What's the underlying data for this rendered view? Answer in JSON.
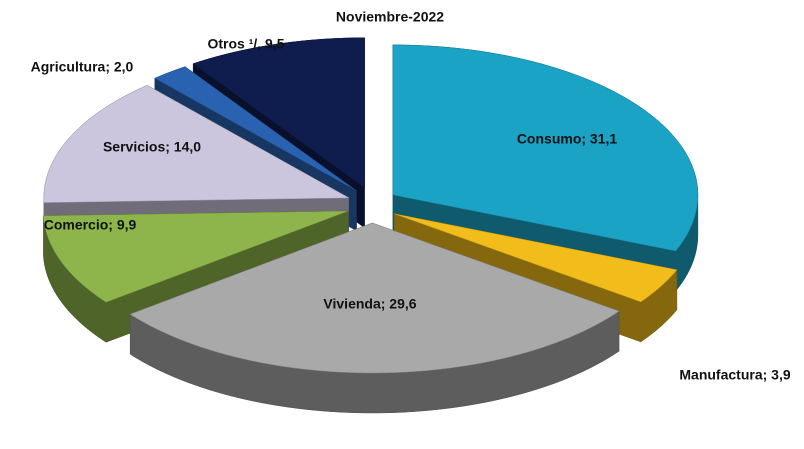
{
  "chart_data": {
    "type": "pie3d",
    "title": "Noviembre-2022",
    "categories": [
      "Consumo",
      "Manufactura",
      "Vivienda",
      "Comercio",
      "Servicios",
      "Agricultura",
      "Otros"
    ],
    "values": [
      31.1,
      3.9,
      29.6,
      9.9,
      14.0,
      2.0,
      9.5
    ],
    "value_labels": [
      "Consumo; 31,1",
      "Manufactura;  3,9",
      "Vivienda; 29,6",
      "Comercio; 9,9",
      "Servicios; 14,0",
      "Agricultura; 2,0",
      "Otros ¹/, 9,5"
    ],
    "colors": [
      "#1ba3c6",
      "#f2bd1a",
      "#a9a9a9",
      "#8db54b",
      "#cbc5dd",
      "#2a62b2",
      "#0e1d4e"
    ]
  }
}
